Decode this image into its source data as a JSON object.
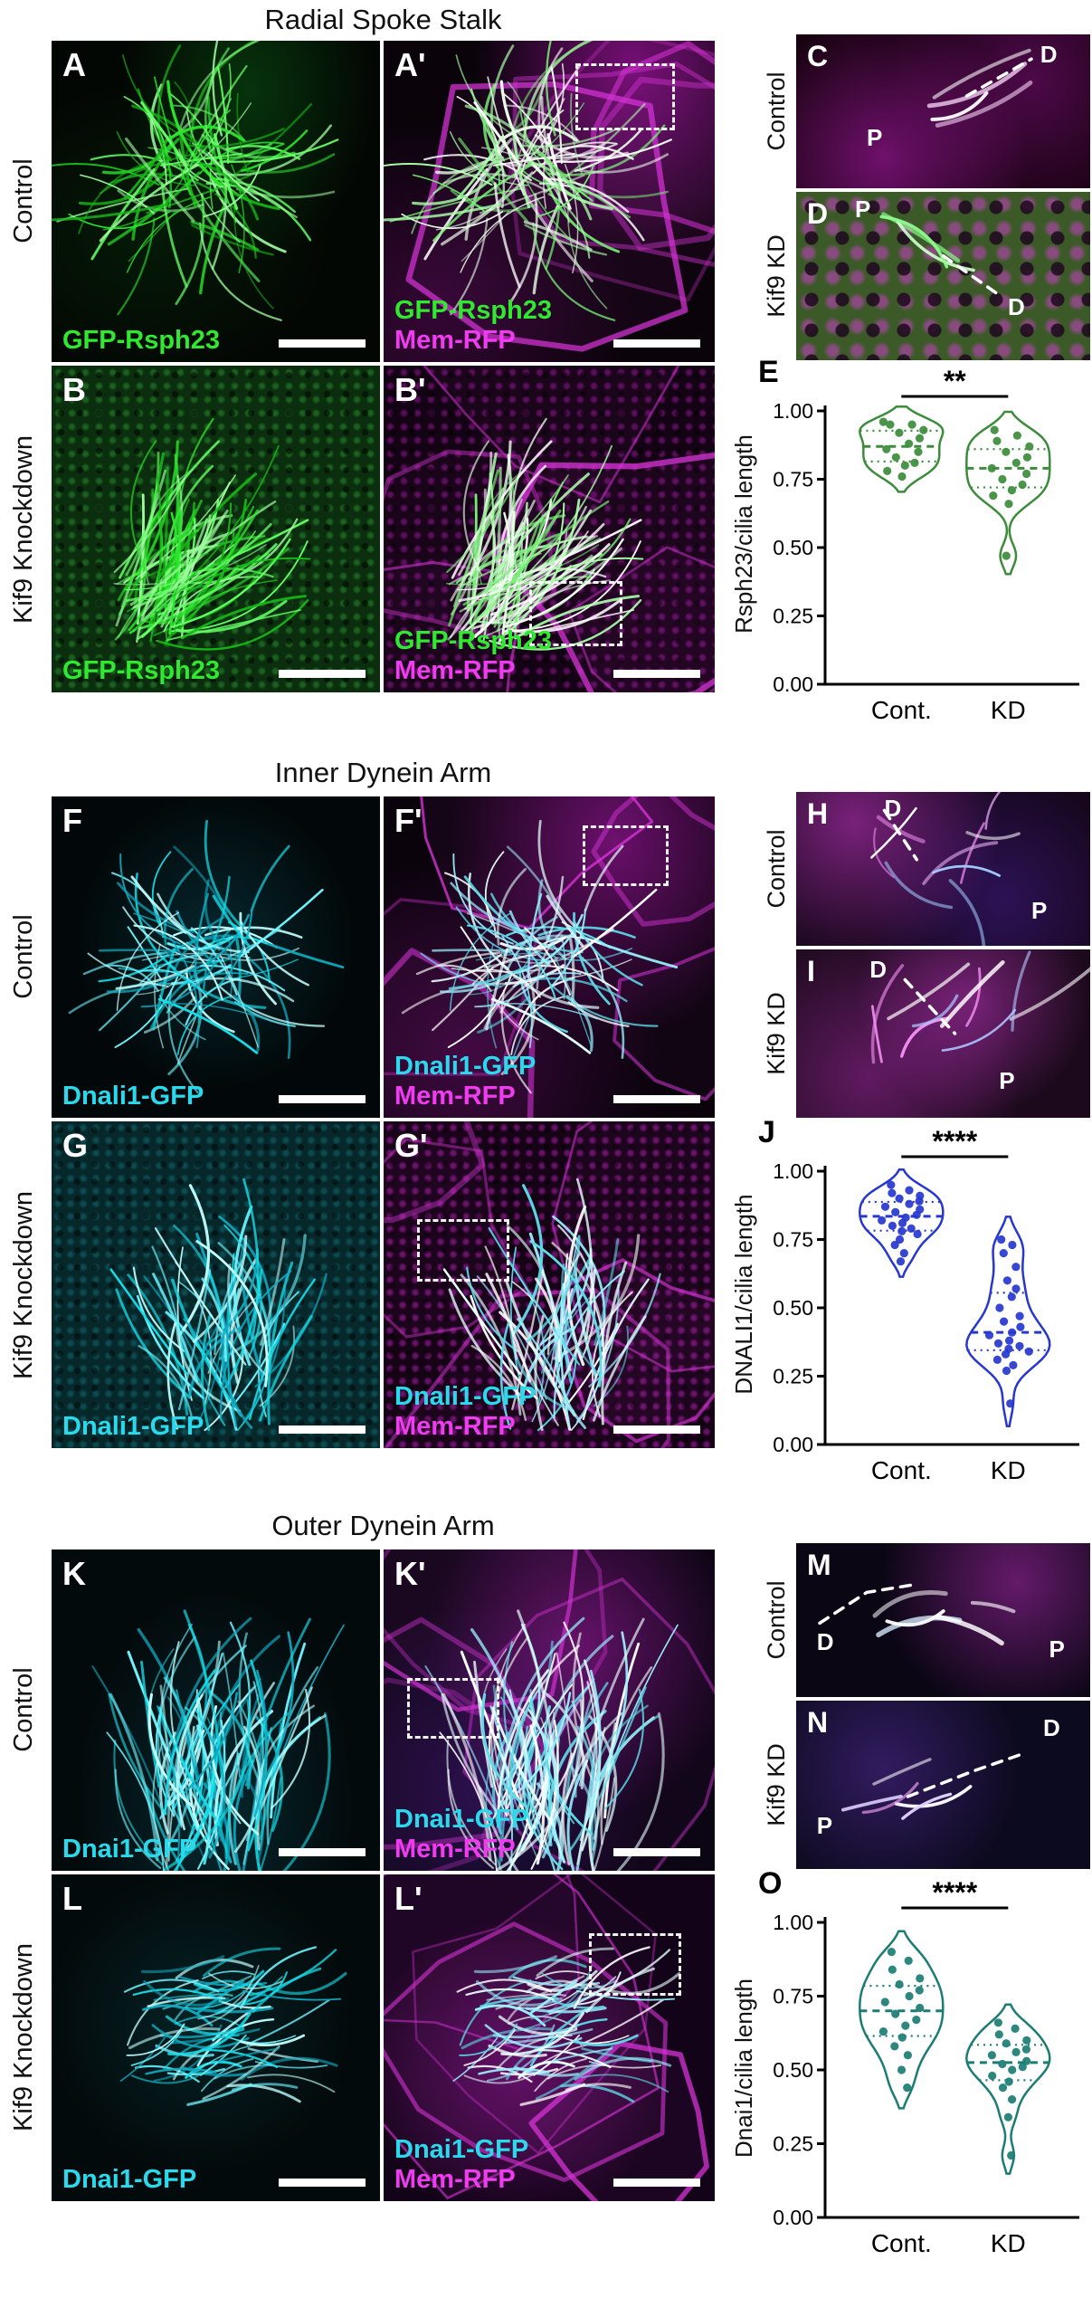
{
  "sections": [
    {
      "title": "Radial Spoke Stalk",
      "row1_label": "Control",
      "row2_label": "Kif9 Knockdown",
      "zoom1_side": "Control",
      "zoom2_side": "Kif9 KD",
      "p1": {
        "letter": "A",
        "label1": "GFP-Rsph23"
      },
      "p1m": {
        "letter": "A'",
        "label1": "GFP-Rsph23",
        "label2": "Mem-RFP"
      },
      "p2": {
        "letter": "B",
        "label1": "GFP-Rsph23"
      },
      "p2m": {
        "letter": "B'",
        "label1": "GFP-Rsph23",
        "label2": "Mem-RFP"
      },
      "z1": {
        "letter": "C",
        "p": "P",
        "d": "D"
      },
      "z2": {
        "letter": "D",
        "p": "P",
        "d": "D"
      },
      "plot_letter": "E"
    },
    {
      "title": "Inner Dynein Arm",
      "row1_label": "Control",
      "row2_label": "Kif9 Knockdown",
      "zoom1_side": "Control",
      "zoom2_side": "Kif9 KD",
      "p1": {
        "letter": "F",
        "label1": "Dnali1-GFP"
      },
      "p1m": {
        "letter": "F'",
        "label1": "Dnali1-GFP",
        "label2": "Mem-RFP"
      },
      "p2": {
        "letter": "G",
        "label1": "Dnali1-GFP"
      },
      "p2m": {
        "letter": "G'",
        "label1": "Dnali1-GFP",
        "label2": "Mem-RFP"
      },
      "z1": {
        "letter": "H",
        "p": "P",
        "d": "D"
      },
      "z2": {
        "letter": "I",
        "p": "P",
        "d": "D"
      },
      "plot_letter": "J"
    },
    {
      "title": "Outer Dynein Arm",
      "row1_label": "Control",
      "row2_label": "Kif9 Knockdown",
      "zoom1_side": "Control",
      "zoom2_side": "Kif9 KD",
      "p1": {
        "letter": "K",
        "label1": "Dnai1-GFP"
      },
      "p1m": {
        "letter": "K'",
        "label1": "Dnai1-GFP",
        "label2": "Mem-RFP"
      },
      "p2": {
        "letter": "L",
        "label1": "Dnai1-GFP"
      },
      "p2m": {
        "letter": "L'",
        "label1": "Dnai1-GFP",
        "label2": "Mem-RFP"
      },
      "z1": {
        "letter": "M",
        "p": "P",
        "d": "D"
      },
      "z2": {
        "letter": "N",
        "p": "P",
        "d": "D"
      },
      "plot_letter": "O"
    }
  ],
  "colors": {
    "gfp_green": "#2fe82f",
    "mem_magenta": "#f03cf0",
    "gfp_cyan": "#2bd9ec"
  },
  "chart_data": [
    {
      "type": "violin-scatter",
      "panel": "E",
      "ylabel": "Rsph23/cilia length",
      "ylim": [
        0,
        1.0
      ],
      "yticks": [
        0,
        0.25,
        0.5,
        0.75,
        1.0
      ],
      "categories": [
        "Cont.",
        "KD"
      ],
      "significance": "**",
      "color": "#3c8c3c",
      "grid": false,
      "legend_position": "none",
      "series": [
        {
          "name": "Cont.",
          "values": [
            0.96,
            0.95,
            0.95,
            0.93,
            0.92,
            0.9,
            0.88,
            0.86,
            0.85,
            0.83,
            0.81,
            0.8,
            0.78,
            0.76
          ]
        },
        {
          "name": "KD",
          "values": [
            0.93,
            0.91,
            0.89,
            0.87,
            0.85,
            0.83,
            0.81,
            0.79,
            0.77,
            0.75,
            0.73,
            0.71,
            0.69,
            0.66,
            0.47
          ]
        }
      ]
    },
    {
      "type": "violin-scatter",
      "panel": "J",
      "ylabel": "DNALI1/cilia length",
      "ylim": [
        0,
        1.0
      ],
      "yticks": [
        0,
        0.25,
        0.5,
        0.75,
        1.0
      ],
      "categories": [
        "Cont.",
        "KD"
      ],
      "significance": "****",
      "color": "#2737cf",
      "grid": false,
      "legend_position": "none",
      "series": [
        {
          "name": "Cont.",
          "values": [
            0.95,
            0.93,
            0.92,
            0.91,
            0.9,
            0.89,
            0.88,
            0.87,
            0.86,
            0.85,
            0.84,
            0.83,
            0.82,
            0.81,
            0.8,
            0.79,
            0.78,
            0.77,
            0.75,
            0.73,
            0.7,
            0.67
          ]
        },
        {
          "name": "KD",
          "values": [
            0.75,
            0.73,
            0.7,
            0.65,
            0.6,
            0.57,
            0.54,
            0.5,
            0.47,
            0.45,
            0.43,
            0.41,
            0.4,
            0.38,
            0.37,
            0.36,
            0.35,
            0.34,
            0.33,
            0.31,
            0.29,
            0.27,
            0.15
          ]
        }
      ]
    },
    {
      "type": "violin-scatter",
      "panel": "O",
      "ylabel": "Dnai1/cilia length",
      "ylim": [
        0,
        1.0
      ],
      "yticks": [
        0,
        0.25,
        0.5,
        0.75,
        1.0
      ],
      "categories": [
        "Cont.",
        "KD"
      ],
      "significance": "****",
      "color": "#1b7d74",
      "grid": false,
      "legend_position": "none",
      "series": [
        {
          "name": "Cont.",
          "values": [
            0.9,
            0.87,
            0.84,
            0.81,
            0.79,
            0.77,
            0.75,
            0.73,
            0.71,
            0.69,
            0.67,
            0.65,
            0.63,
            0.61,
            0.58,
            0.55,
            0.5,
            0.44
          ]
        },
        {
          "name": "KD",
          "values": [
            0.66,
            0.64,
            0.62,
            0.6,
            0.59,
            0.57,
            0.56,
            0.55,
            0.53,
            0.52,
            0.51,
            0.5,
            0.48,
            0.46,
            0.44,
            0.4,
            0.34,
            0.21
          ]
        }
      ]
    }
  ]
}
